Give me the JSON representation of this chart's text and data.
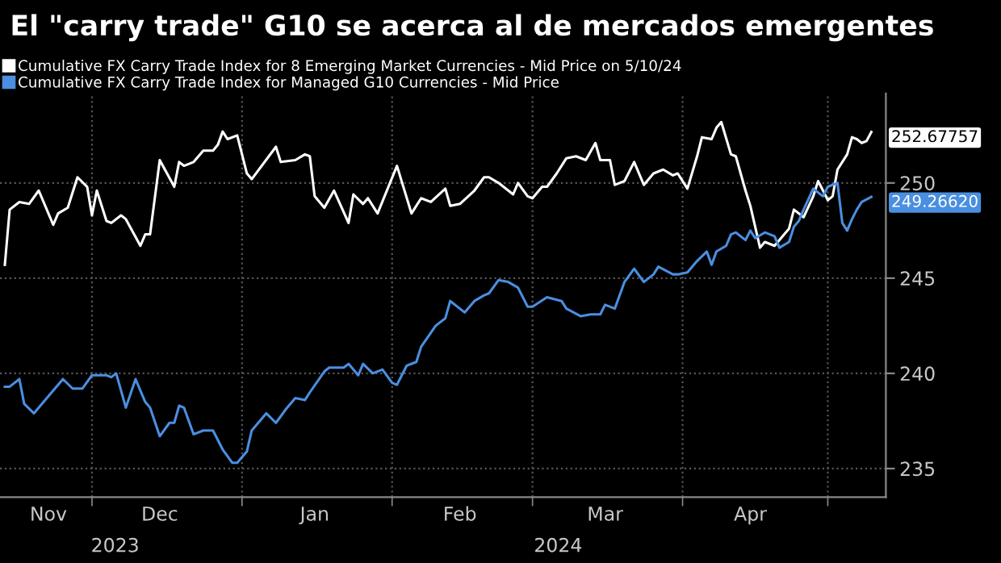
{
  "chart_data": {
    "type": "line",
    "title": "El \"carry trade\" G10 se acerca al de mercados emergentes",
    "series": [
      {
        "name": "Cumulative FX Carry Trade Index for 8 Emerging Market Currencies - Mid Price on 5/10/24",
        "color": "#ffffff",
        "x": [
          "2023-11-13",
          "2023-11-14",
          "2023-11-16",
          "2023-11-18",
          "2023-11-20",
          "2023-11-23",
          "2023-11-24",
          "2023-11-26",
          "2023-11-28",
          "2023-11-30",
          "2023-12-01",
          "2023-12-02",
          "2023-12-04",
          "2023-12-05",
          "2023-12-07",
          "2023-12-08",
          "2023-12-11",
          "2023-12-12",
          "2023-12-13",
          "2023-12-15",
          "2023-12-18",
          "2023-12-19",
          "2023-12-20",
          "2023-12-22",
          "2023-12-24",
          "2023-12-26",
          "2023-12-27",
          "2023-12-28",
          "2023-12-29",
          "2023-12-31",
          "2024-01-02",
          "2024-01-03",
          "2024-01-08",
          "2024-01-09",
          "2024-01-12",
          "2024-01-14",
          "2024-01-15",
          "2024-01-16",
          "2024-01-18",
          "2024-01-20",
          "2024-01-23",
          "2024-01-24",
          "2024-01-26",
          "2024-01-27",
          "2024-01-29",
          "2024-02-02",
          "2024-02-05",
          "2024-02-07",
          "2024-02-09",
          "2024-02-12",
          "2024-02-13",
          "2024-02-15",
          "2024-02-18",
          "2024-02-20",
          "2024-02-21",
          "2024-02-23",
          "2024-02-26",
          "2024-02-27",
          "2024-02-29",
          "2024-03-01",
          "2024-03-03",
          "2024-03-04",
          "2024-03-06",
          "2024-03-08",
          "2024-03-10",
          "2024-03-12",
          "2024-03-14",
          "2024-03-15",
          "2024-03-17",
          "2024-03-18",
          "2024-03-20",
          "2024-03-22",
          "2024-03-24",
          "2024-03-26",
          "2024-03-28",
          "2024-03-30",
          "2024-03-31",
          "2024-04-02",
          "2024-04-04",
          "2024-04-05",
          "2024-04-07",
          "2024-04-08",
          "2024-04-09",
          "2024-04-11",
          "2024-04-12",
          "2024-04-14",
          "2024-04-15",
          "2024-04-17",
          "2024-04-18",
          "2024-04-20",
          "2024-04-22",
          "2024-04-23",
          "2024-04-24",
          "2024-04-26",
          "2024-04-28",
          "2024-04-29",
          "2024-05-01",
          "2024-05-02",
          "2024-05-03",
          "2024-05-05",
          "2024-05-06",
          "2024-05-07",
          "2024-05-08",
          "2024-05-09",
          "2024-05-10"
        ],
        "values": [
          245.7,
          248.6,
          249.0,
          248.9,
          249.6,
          247.8,
          248.4,
          248.7,
          250.3,
          249.8,
          248.3,
          249.6,
          248.0,
          247.9,
          248.3,
          248.1,
          246.7,
          247.3,
          247.3,
          251.2,
          249.8,
          251.1,
          250.9,
          251.1,
          251.7,
          251.7,
          252.0,
          252.7,
          252.3,
          252.5,
          250.5,
          250.2,
          251.9,
          251.1,
          251.2,
          251.5,
          251.4,
          249.3,
          248.7,
          249.6,
          247.9,
          249.4,
          248.9,
          249.2,
          248.4,
          250.9,
          248.4,
          249.2,
          249.0,
          249.7,
          248.8,
          248.9,
          249.6,
          250.3,
          250.3,
          250.0,
          249.4,
          250.0,
          249.3,
          249.2,
          249.8,
          249.8,
          250.5,
          251.3,
          251.4,
          251.2,
          252.1,
          251.2,
          251.2,
          249.9,
          250.1,
          251.1,
          249.9,
          250.5,
          250.7,
          250.4,
          250.5,
          249.7,
          251.4,
          252.4,
          252.3,
          252.9,
          253.2,
          251.5,
          251.4,
          249.6,
          248.8,
          246.6,
          246.9,
          246.7,
          247.3,
          247.6,
          248.6,
          248.2,
          249.3,
          250.1,
          249.1,
          249.3,
          250.7,
          251.5,
          252.4,
          252.3,
          252.1,
          252.2,
          252.67757
        ],
        "value_labels": [
          null,
          null,
          null,
          null,
          null,
          null,
          null,
          null,
          null,
          null,
          null,
          null,
          null,
          null,
          null,
          null,
          null,
          null,
          null,
          null,
          null,
          null,
          null,
          null,
          null,
          null,
          null,
          null,
          null,
          null,
          null,
          null,
          null,
          null,
          null,
          null,
          null,
          null,
          null,
          null,
          null,
          null,
          null,
          null,
          null,
          null,
          null,
          null,
          null,
          null,
          null,
          null,
          null,
          null,
          null,
          null,
          null,
          null,
          null,
          null,
          null,
          null,
          null,
          null,
          null,
          null,
          null,
          null,
          null,
          null,
          null,
          null,
          null,
          null,
          null,
          null,
          null,
          null,
          null,
          null,
          null,
          null,
          null,
          null,
          null,
          null,
          null,
          null,
          null,
          null,
          null,
          null,
          null,
          null,
          null,
          null,
          null,
          null,
          null,
          null,
          null,
          null,
          null,
          null,
          "252.67757"
        ]
      },
      {
        "name": "Cumulative FX Carry Trade Index for Managed G10 Currencies - Mid Price",
        "color": "#4a8fe0",
        "x": [
          "2023-11-13",
          "2023-11-14",
          "2023-11-16",
          "2023-11-17",
          "2023-11-19",
          "2023-11-22",
          "2023-11-25",
          "2023-11-27",
          "2023-11-29",
          "2023-12-01",
          "2023-12-04",
          "2023-12-05",
          "2023-12-06",
          "2023-12-08",
          "2023-12-10",
          "2023-12-12",
          "2023-12-13",
          "2023-12-15",
          "2023-12-17",
          "2023-12-18",
          "2023-12-19",
          "2023-12-20",
          "2023-12-22",
          "2023-12-24",
          "2023-12-26",
          "2023-12-28",
          "2023-12-30",
          "2023-12-31",
          "2024-01-02",
          "2024-01-03",
          "2024-01-06",
          "2024-01-08",
          "2024-01-10",
          "2024-01-12",
          "2024-01-14",
          "2024-01-15",
          "2024-01-18",
          "2024-01-19",
          "2024-01-22",
          "2024-01-23",
          "2024-01-25",
          "2024-01-26",
          "2024-01-28",
          "2024-01-30",
          "2024-02-01",
          "2024-02-02",
          "2024-02-04",
          "2024-02-06",
          "2024-02-07",
          "2024-02-10",
          "2024-02-12",
          "2024-02-13",
          "2024-02-16",
          "2024-02-18",
          "2024-02-20",
          "2024-02-21",
          "2024-02-23",
          "2024-02-25",
          "2024-02-27",
          "2024-02-29",
          "2024-03-01",
          "2024-03-04",
          "2024-03-07",
          "2024-03-08",
          "2024-03-11",
          "2024-03-13",
          "2024-03-15",
          "2024-03-16",
          "2024-03-18",
          "2024-03-20",
          "2024-03-22",
          "2024-03-24",
          "2024-03-26",
          "2024-03-27",
          "2024-03-30",
          "2024-03-31",
          "2024-04-02",
          "2024-04-04",
          "2024-04-06",
          "2024-04-07",
          "2024-04-08",
          "2024-04-10",
          "2024-04-11",
          "2024-04-12",
          "2024-04-14",
          "2024-04-15",
          "2024-04-16",
          "2024-04-18",
          "2024-04-20",
          "2024-04-21",
          "2024-04-23",
          "2024-04-24",
          "2024-04-25",
          "2024-04-26",
          "2024-04-28",
          "2024-04-30",
          "2024-05-01",
          "2024-05-03",
          "2024-05-04",
          "2024-05-05",
          "2024-05-06",
          "2024-05-07",
          "2024-05-08",
          "2024-05-10"
        ],
        "values": [
          239.3,
          239.3,
          239.7,
          238.4,
          237.9,
          238.8,
          239.7,
          239.2,
          239.2,
          239.9,
          239.9,
          239.8,
          240.0,
          238.2,
          239.7,
          238.5,
          238.2,
          236.7,
          237.4,
          237.4,
          238.3,
          238.2,
          236.8,
          237.0,
          237.0,
          236.0,
          235.3,
          235.3,
          235.9,
          237.0,
          237.9,
          237.4,
          238.1,
          238.7,
          238.6,
          239.0,
          240.1,
          240.3,
          240.3,
          240.5,
          239.9,
          240.5,
          240.0,
          240.2,
          239.5,
          239.4,
          240.4,
          240.6,
          241.4,
          242.5,
          242.9,
          243.8,
          243.2,
          243.8,
          244.1,
          244.2,
          244.9,
          244.8,
          244.5,
          243.5,
          243.5,
          244.0,
          243.8,
          243.4,
          243.0,
          243.1,
          243.1,
          243.6,
          243.4,
          244.8,
          245.5,
          244.8,
          245.2,
          245.6,
          245.2,
          245.2,
          245.3,
          245.9,
          246.4,
          245.7,
          246.4,
          246.7,
          247.3,
          247.4,
          247.0,
          247.5,
          247.1,
          247.4,
          247.2,
          246.6,
          246.9,
          247.7,
          248.0,
          248.6,
          249.7,
          249.3,
          249.8,
          250.0,
          247.9,
          247.5,
          248.1,
          248.6,
          249.0,
          249.2662
        ],
        "value_labels": [
          null,
          null,
          null,
          null,
          null,
          null,
          null,
          null,
          null,
          null,
          null,
          null,
          null,
          null,
          null,
          null,
          null,
          null,
          null,
          null,
          null,
          null,
          null,
          null,
          null,
          null,
          null,
          null,
          null,
          null,
          null,
          null,
          null,
          null,
          null,
          null,
          null,
          null,
          null,
          null,
          null,
          null,
          null,
          null,
          null,
          null,
          null,
          null,
          null,
          null,
          null,
          null,
          null,
          null,
          null,
          null,
          null,
          null,
          null,
          null,
          null,
          null,
          null,
          null,
          null,
          null,
          null,
          null,
          null,
          null,
          null,
          null,
          null,
          null,
          null,
          null,
          null,
          null,
          null,
          null,
          null,
          null,
          null,
          null,
          null,
          null,
          null,
          null,
          null,
          null,
          null,
          null,
          null,
          null,
          null,
          null,
          null,
          null,
          null,
          null,
          null,
          null,
          null,
          "249.26620"
        ]
      }
    ],
    "xlim": [
      "2023-11-12",
      "2024-05-13"
    ],
    "xticks": [
      {
        "value": "2023-11-22",
        "label": "Nov"
      },
      {
        "value": "2023-12-01",
        "label": null
      },
      {
        "value": "2023-12-15",
        "label": "Dec"
      },
      {
        "value": "2024-01-01",
        "label": null
      },
      {
        "value": "2024-01-16",
        "label": "Jan"
      },
      {
        "value": "2024-02-01",
        "label": null
      },
      {
        "value": "2024-02-15",
        "label": "Feb"
      },
      {
        "value": "2024-03-01",
        "label": null
      },
      {
        "value": "2024-03-16",
        "label": "Mar"
      },
      {
        "value": "2024-04-01",
        "label": null
      },
      {
        "value": "2024-04-15",
        "label": "Apr"
      },
      {
        "value": "2024-05-01",
        "label": null
      }
    ],
    "ylim": [
      233.5,
      254.7
    ],
    "yticks": [
      235,
      240,
      245,
      250
    ],
    "grid": true,
    "legend": "top left",
    "annotations": [
      "2023",
      "2024"
    ]
  }
}
